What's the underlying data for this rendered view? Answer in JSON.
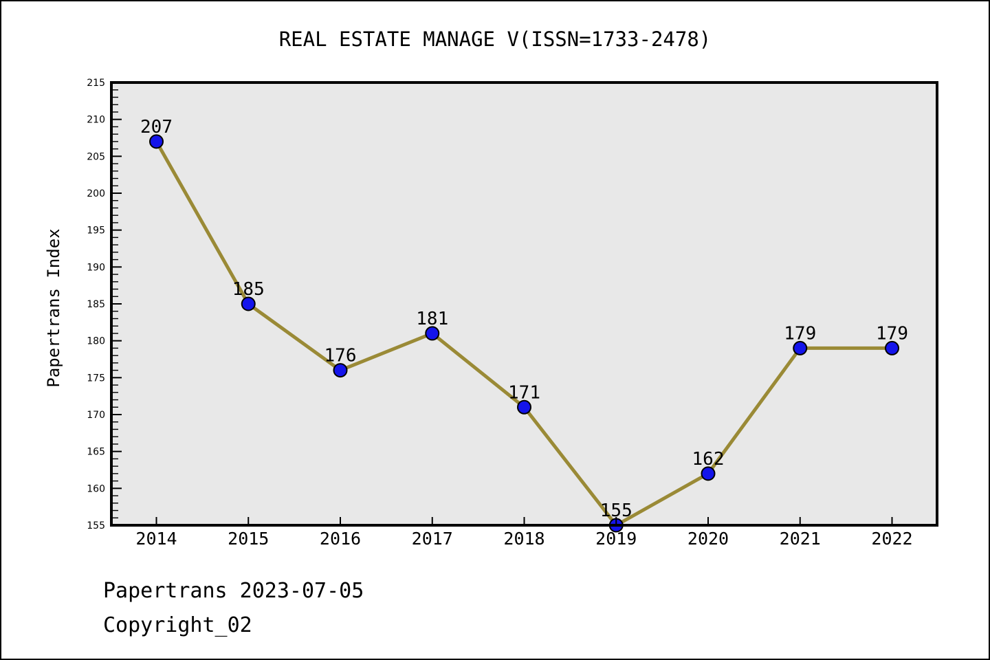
{
  "chart_data": {
    "type": "line",
    "title": "REAL ESTATE MANAGE V(ISSN=1733-2478)",
    "xlabel": "",
    "ylabel": "Papertrans Index",
    "categories": [
      "2014",
      "2015",
      "2016",
      "2017",
      "2018",
      "2019",
      "2020",
      "2021",
      "2022"
    ],
    "values": [
      207,
      185,
      176,
      181,
      171,
      155,
      162,
      179,
      179
    ],
    "ylim": [
      155,
      215
    ],
    "y_major_step": 5,
    "y_minor_step": 1,
    "grid": false,
    "legend_position": "none",
    "styles": {
      "line_color": "#9a8a36",
      "marker_color": "#1414eb",
      "marker_edge_color": "#000000",
      "plot_bg": "#e8e8e8",
      "axis_color": "#000000",
      "text_color": "#000000"
    }
  },
  "footer": {
    "line1": "Papertrans 2023-07-05",
    "line2": "Copyright_02"
  }
}
